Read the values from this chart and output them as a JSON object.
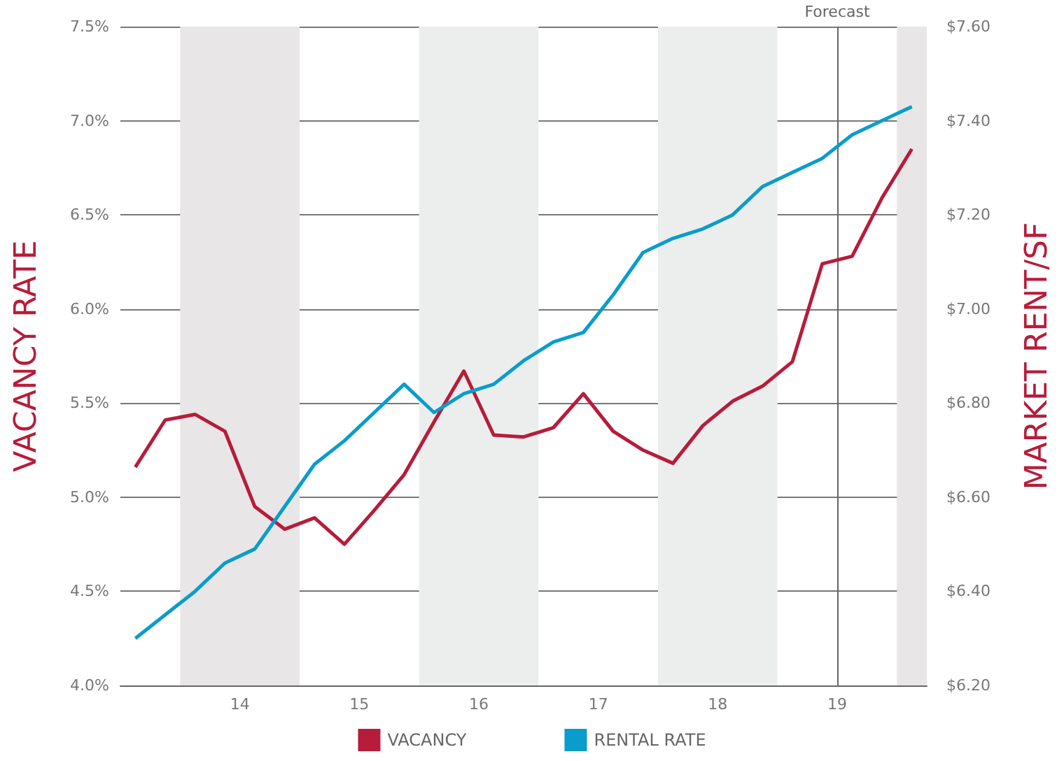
{
  "chart_data": {
    "type": "line",
    "xlabel": null,
    "ylabel": "VACANCY RATE",
    "y2label": "MARKET RENT/SF",
    "x": [
      13.125,
      13.375,
      13.625,
      13.875,
      14.125,
      14.375,
      14.625,
      14.875,
      15.125,
      15.375,
      15.625,
      15.875,
      16.125,
      16.375,
      16.625,
      16.875,
      17.125,
      17.375,
      17.625,
      17.875,
      18.125,
      18.375,
      18.625,
      18.875,
      19.125,
      19.375,
      19.625
    ],
    "series": [
      {
        "name": "VACANCY",
        "color": "#b71c3a",
        "values": [
          5.16,
          5.41,
          5.44,
          5.35,
          4.95,
          4.83,
          4.89,
          4.75,
          4.93,
          5.12,
          5.4,
          5.67,
          5.33,
          5.32,
          5.37,
          5.55,
          5.35,
          5.25,
          5.18,
          5.38,
          5.51,
          5.59,
          5.72,
          6.24,
          6.28,
          6.59,
          6.85
        ]
      },
      {
        "name": "RENTAL RATE",
        "color": "#0a9ccc",
        "axis": "y2",
        "values": [
          6.3,
          6.35,
          6.4,
          6.46,
          6.49,
          6.58,
          6.67,
          6.72,
          6.78,
          6.84,
          6.78,
          6.82,
          6.84,
          6.89,
          6.93,
          6.95,
          7.03,
          7.12,
          7.15,
          7.17,
          7.2,
          7.26,
          7.29,
          7.32,
          7.37,
          7.4,
          7.43
        ]
      }
    ],
    "xlim": [
      13,
      19.75
    ],
    "xticks": [
      14,
      15,
      16,
      17,
      18,
      19
    ],
    "ylim": [
      4.0,
      7.5
    ],
    "yticks": [
      {
        "value": 4.0,
        "label": "4.0%"
      },
      {
        "value": 4.5,
        "label": "4.5%"
      },
      {
        "value": 5.0,
        "label": "5.0%"
      },
      {
        "value": 5.5,
        "label": "5.5%"
      },
      {
        "value": 6.0,
        "label": "6.0%"
      },
      {
        "value": 6.5,
        "label": "6.5%"
      },
      {
        "value": 7.0,
        "label": "7.0%"
      },
      {
        "value": 7.5,
        "label": "7.5%"
      }
    ],
    "y2lim": [
      6.2,
      7.6
    ],
    "y2ticks": [
      {
        "value": 6.2,
        "label": "$6.20"
      },
      {
        "value": 6.4,
        "label": "$6.40"
      },
      {
        "value": 6.6,
        "label": "$6.60"
      },
      {
        "value": 6.8,
        "label": "$6.80"
      },
      {
        "value": 7.0,
        "label": "$7.00"
      },
      {
        "value": 7.2,
        "label": "$7.20"
      },
      {
        "value": 7.4,
        "label": "$7.40"
      },
      {
        "value": 7.6,
        "label": "$7.60"
      }
    ],
    "bands": [
      {
        "axis": "x",
        "from": 13.5,
        "to": 14.5,
        "color": "#e9e6e7"
      },
      {
        "axis": "x",
        "from": 15.5,
        "to": 16.5,
        "color": "#eceeed"
      },
      {
        "axis": "x",
        "from": 17.5,
        "to": 18.5,
        "color": "#eceeed"
      },
      {
        "axis": "x",
        "from": 19.5,
        "to": 19.75,
        "color": "#e9e6e7"
      }
    ],
    "ref_lines": [
      {
        "axis": "x",
        "value": 19,
        "label": "Forecast",
        "color": "#666666"
      }
    ],
    "grid": "y",
    "legend": "bottom",
    "marker": "none",
    "line_style": "solid"
  }
}
